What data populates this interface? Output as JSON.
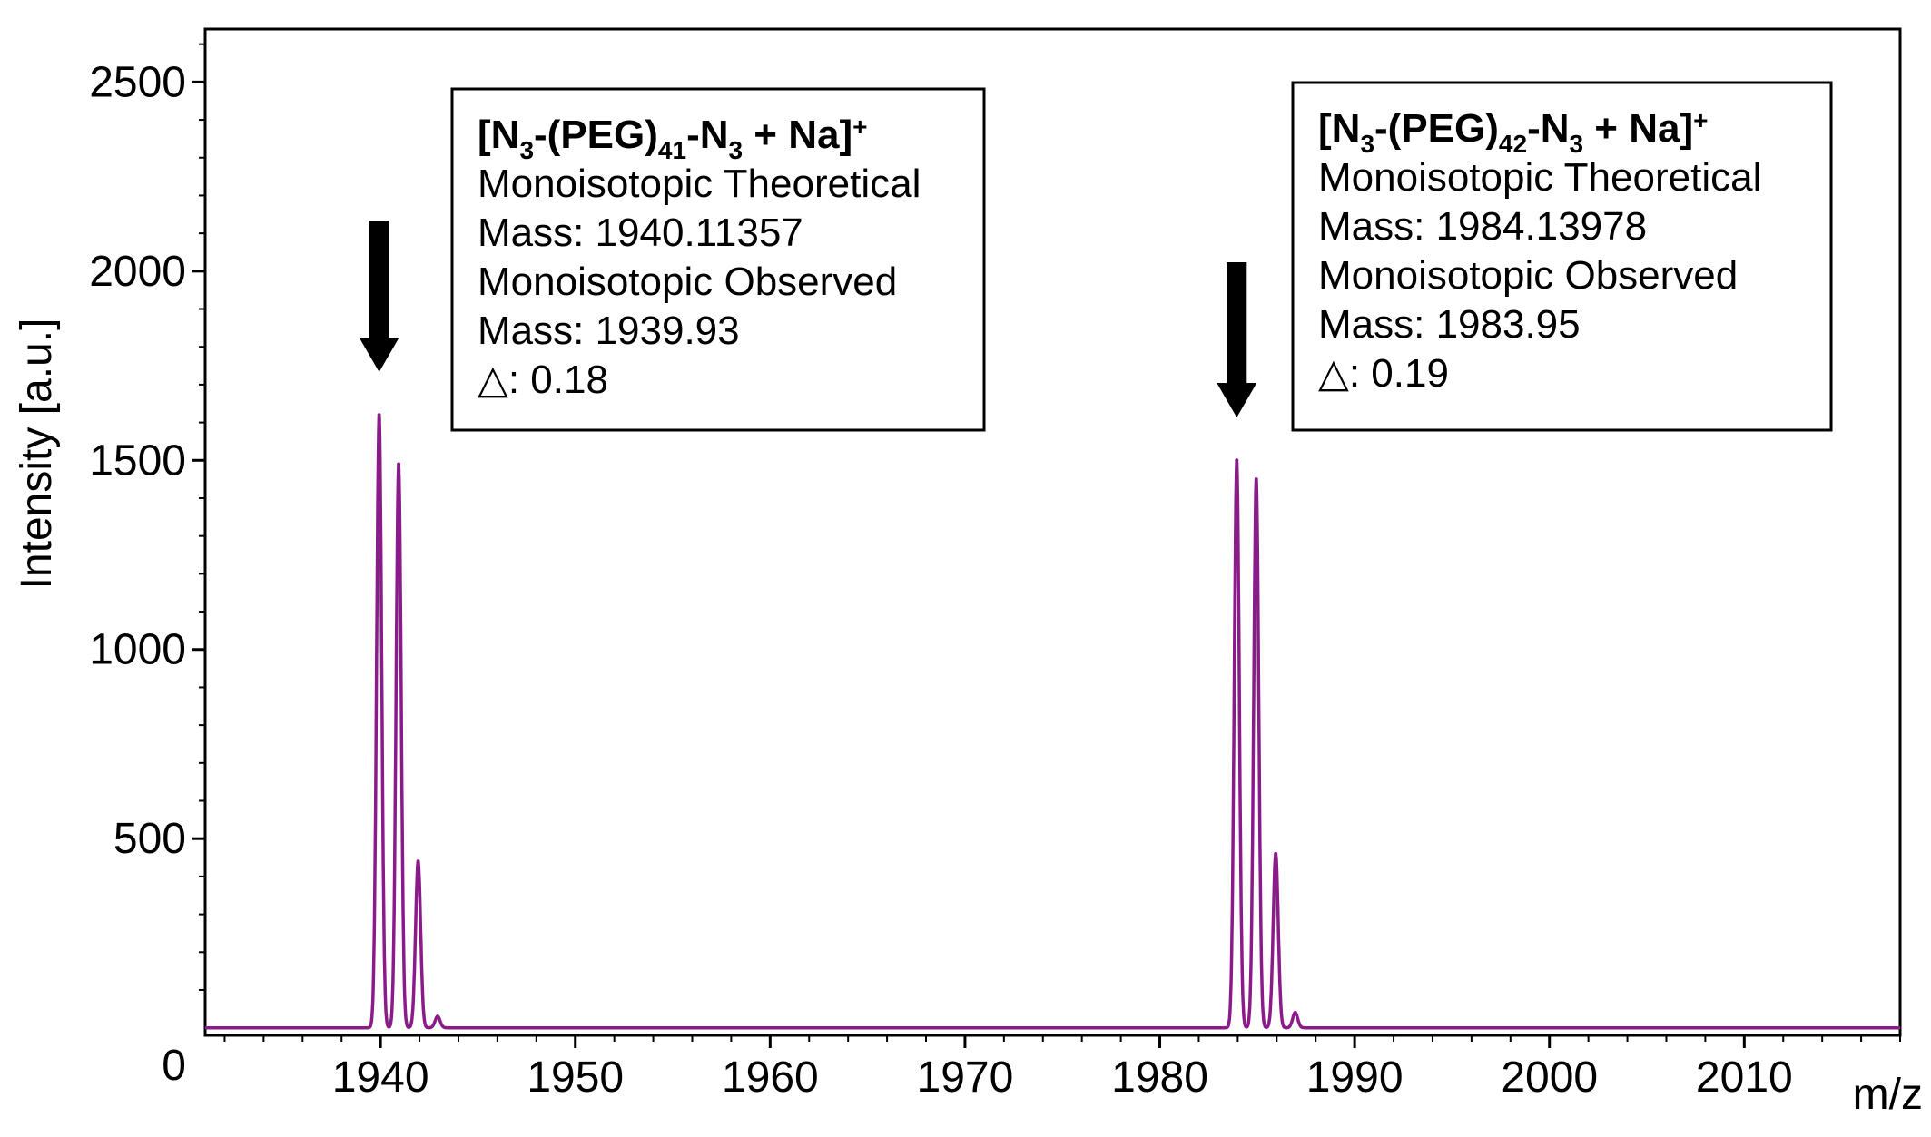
{
  "chart_data": {
    "type": "line",
    "xlabel": "m/z",
    "ylabel": "Intensity [a.u.]",
    "xlim": [
      1931,
      2018
    ],
    "ylim": [
      -20,
      2640
    ],
    "x_ticks": [
      1940,
      1950,
      1960,
      1970,
      1980,
      1990,
      2000,
      2010
    ],
    "x_tick_labels": [
      "1940",
      "1950",
      "1960",
      "1970",
      "1980",
      "1990",
      "2000",
      "2010"
    ],
    "y_ticks": [
      0,
      500,
      1000,
      1500,
      2000,
      2500
    ],
    "y_tick_labels": [
      "0",
      "500",
      "1000",
      "1500",
      "2000",
      "2500"
    ],
    "grid": false,
    "legend": "none",
    "colors": {
      "series": "#8B1A8B",
      "axis": "#000000",
      "arrow": "#000000"
    },
    "series": [
      {
        "peaks": [
          {
            "x": 1939.93,
            "y": 1620
          },
          {
            "x": 1940.93,
            "y": 1490
          },
          {
            "x": 1941.93,
            "y": 440
          },
          {
            "x": 1942.93,
            "y": 30
          },
          {
            "x": 1983.95,
            "y": 1500
          },
          {
            "x": 1984.95,
            "y": 1450
          },
          {
            "x": 1985.95,
            "y": 460
          },
          {
            "x": 1986.95,
            "y": 40
          }
        ],
        "baseline": 0
      }
    ],
    "annotations": [
      {
        "arrow_x": 1939.93,
        "title": {
          "prefix": "[N",
          "sub1": "3",
          "middle": "-(PEG)",
          "sub2": "41",
          "dash": "-N",
          "sub3": "3",
          "suffix": " + Na]",
          "sup": "+"
        },
        "lines": [
          "Monoisotopic Theoretical",
          "Mass: 1940.11357",
          "Monoisotopic Observed",
          "Mass: 1939.93",
          "△: 0.18"
        ]
      },
      {
        "arrow_x": 1983.95,
        "title": {
          "prefix": "[N",
          "sub1": "3",
          "middle": "-(PEG)",
          "sub2": "42",
          "dash": "-N",
          "sub3": "3",
          "suffix": " + Na]",
          "sup": "+"
        },
        "lines": [
          "Monoisotopic Theoretical",
          "Mass: 1984.13978",
          "Monoisotopic Observed",
          "Mass: 1983.95",
          "△: 0.19"
        ]
      }
    ]
  }
}
